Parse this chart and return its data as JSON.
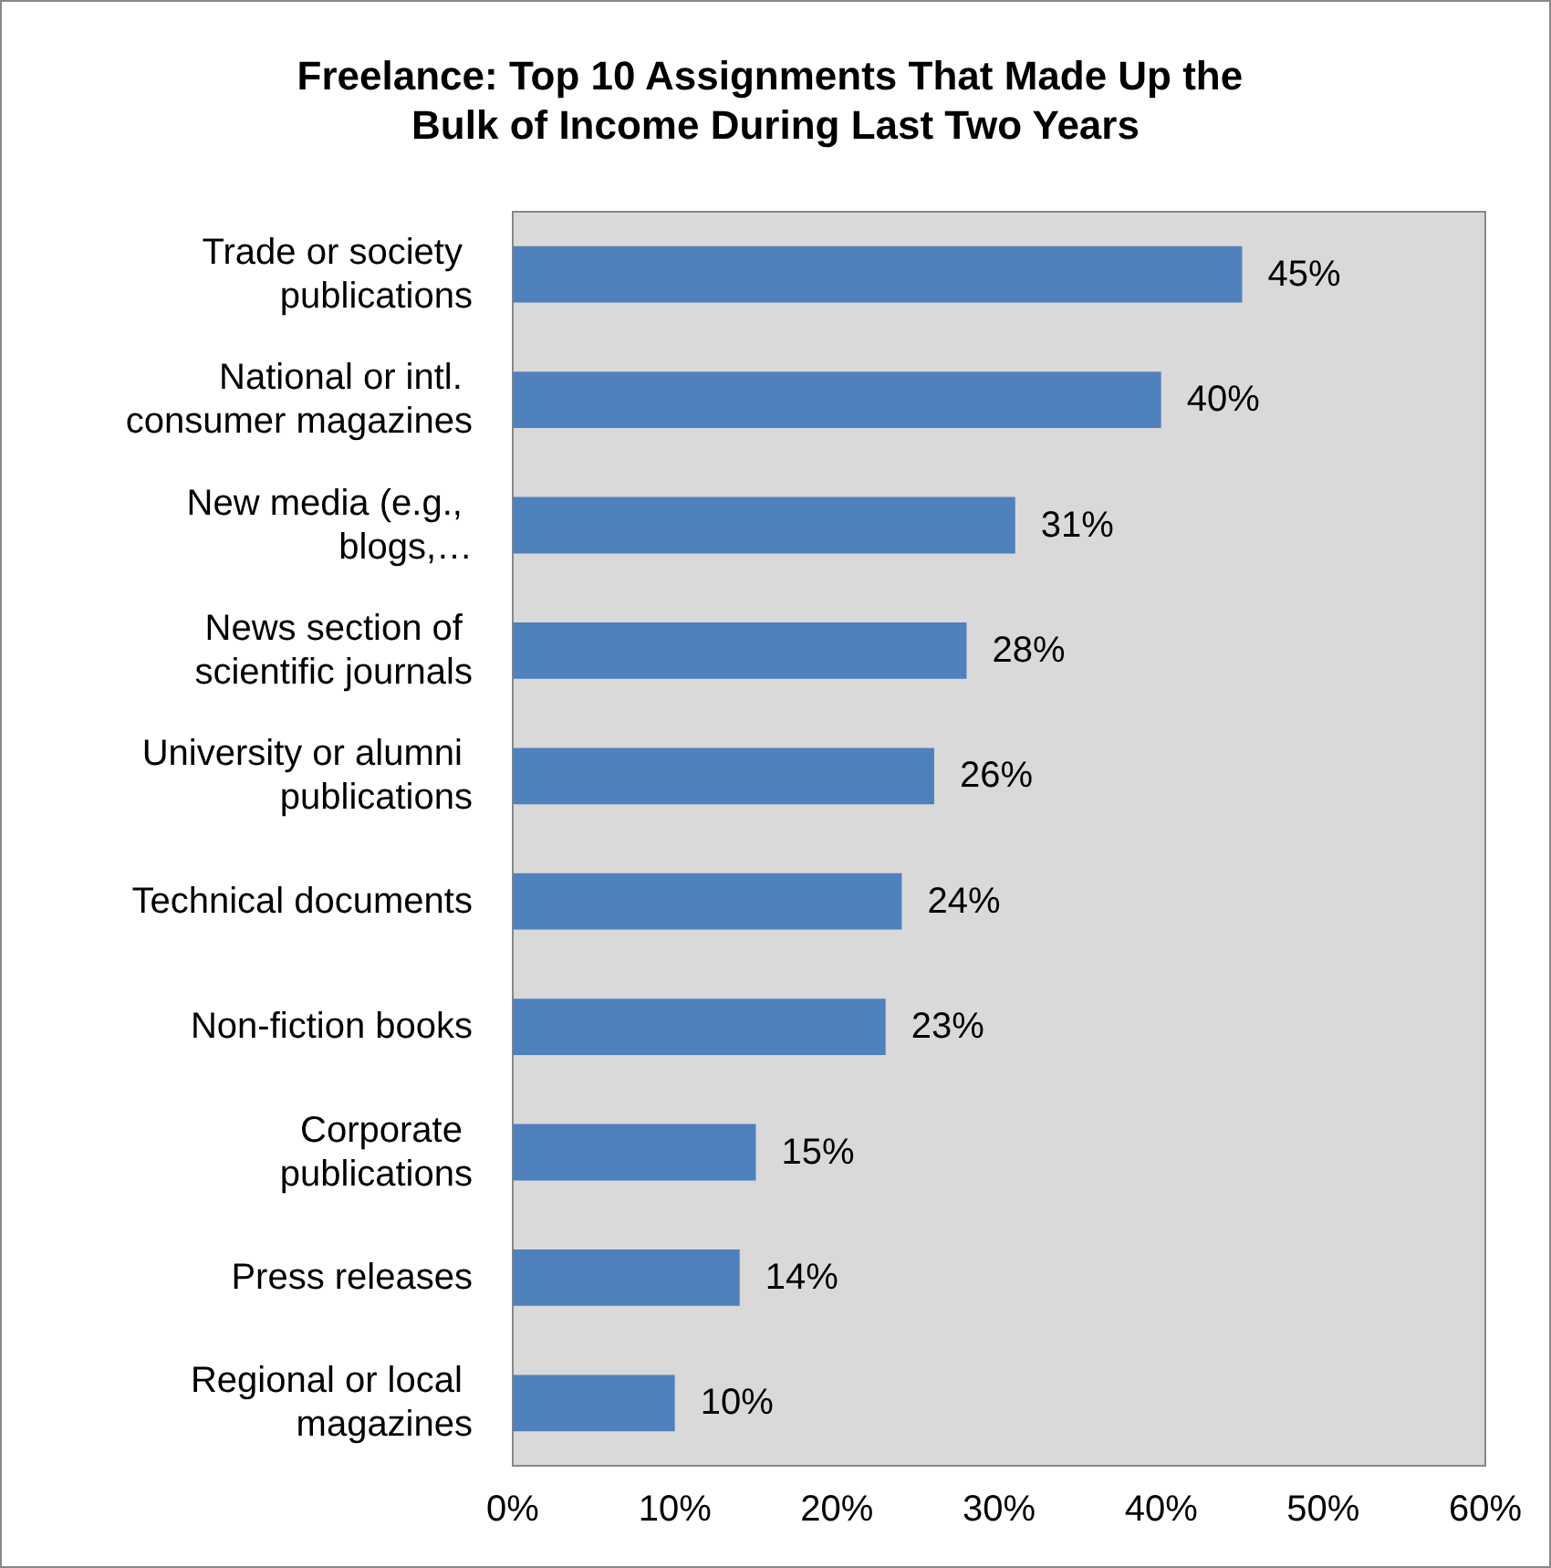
{
  "chart_data": {
    "type": "bar",
    "orientation": "horizontal",
    "title": "Freelance: Top 10 Assignments That Made Up the Bulk of Income During Last Two Years",
    "categories": [
      "Trade or society publications",
      "National or intl. consumer magazines",
      "New media (e.g., blogs,…",
      "News section of scientific journals",
      "University or alumni publications",
      "Technical documents",
      "Non-fiction books",
      "Corporate publications",
      "Press releases",
      "Regional or local magazines"
    ],
    "values": [
      45,
      40,
      31,
      28,
      26,
      24,
      23,
      15,
      14,
      10
    ],
    "value_labels": [
      "45%",
      "40%",
      "31%",
      "28%",
      "26%",
      "24%",
      "23%",
      "15%",
      "14%",
      "10%"
    ],
    "color": "#4f81bd",
    "xlim": [
      0,
      60
    ],
    "xticks": [
      {
        "value": 0,
        "label": "0%"
      },
      {
        "value": 10,
        "label": "10%"
      },
      {
        "value": 20,
        "label": "20%"
      },
      {
        "value": 30,
        "label": "30%"
      },
      {
        "value": 40,
        "label": "40%"
      },
      {
        "value": 50,
        "label": "50%"
      },
      {
        "value": 60,
        "label": "60%"
      }
    ],
    "grid": false
  }
}
